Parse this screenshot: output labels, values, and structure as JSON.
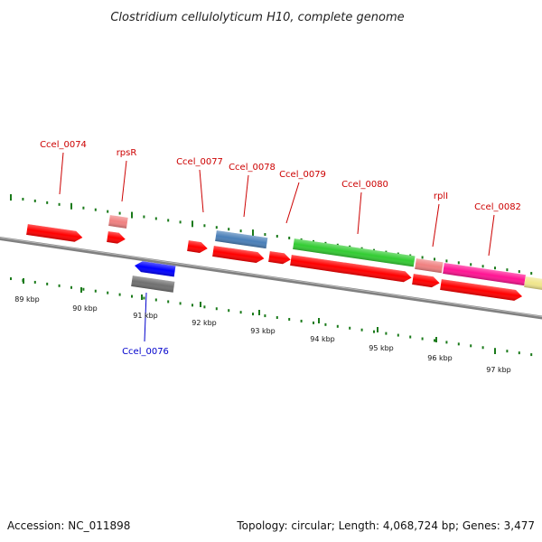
{
  "title": "Clostridium cellulolyticum H10, complete genome",
  "footer": {
    "accession": "Accession: NC_011898",
    "summary": "Topology: circular; Length: 4,068,724 bp; Genes: 3,477"
  },
  "colors": {
    "plus_label": "#cc0000",
    "minus_label": "#0000cc",
    "backbone": "#808080",
    "tick": "#1a7a1a",
    "red": "#ff0000",
    "pink": "#f08080",
    "steelblue": "#4a7fb8",
    "green": "#33cc33",
    "magenta": "#ff1493",
    "khaki": "#f0e68c",
    "blue": "#0000ff",
    "gray": "#707070"
  },
  "ticks": [
    "89 kbp",
    "90 kbp",
    "91 kbp",
    "92 kbp",
    "93 kbp",
    "94 kbp",
    "95 kbp",
    "96 kbp",
    "97 kbp"
  ],
  "labels": {
    "top": [
      "Ccel_0074",
      "rpsR",
      "Ccel_0077",
      "Ccel_0078",
      "Ccel_0079",
      "Ccel_0080",
      "rplI",
      "Ccel_0082"
    ],
    "bottom": [
      "Ccel_0076"
    ]
  },
  "features": [
    {
      "name": "Ccel_0074",
      "color": "red",
      "strand": "+"
    },
    {
      "name": "rpsR",
      "color": "pink",
      "strand": "+"
    },
    {
      "name": "rpsR-cds",
      "color": "red",
      "strand": "+"
    },
    {
      "name": "Ccel_0076",
      "color": "blue",
      "strand": "-"
    },
    {
      "name": "Ccel_0076-gene",
      "color": "gray",
      "strand": "-"
    },
    {
      "name": "Ccel_0077",
      "color": "red",
      "strand": "+"
    },
    {
      "name": "Ccel_0078",
      "color": "steelblue",
      "strand": "+"
    },
    {
      "name": "Ccel_0078-cds",
      "color": "red",
      "strand": "+"
    },
    {
      "name": "Ccel_0079",
      "color": "red",
      "strand": "+"
    },
    {
      "name": "Ccel_0080",
      "color": "green",
      "strand": "+"
    },
    {
      "name": "Ccel_0080-cds",
      "color": "red",
      "strand": "+"
    },
    {
      "name": "rplI",
      "color": "pink",
      "strand": "+"
    },
    {
      "name": "rplI-cds",
      "color": "red",
      "strand": "+"
    },
    {
      "name": "Ccel_0082",
      "color": "magenta",
      "strand": "+"
    },
    {
      "name": "Ccel_0082-cds",
      "color": "red",
      "strand": "+"
    },
    {
      "name": "next-gene",
      "color": "khaki",
      "strand": "+"
    }
  ]
}
